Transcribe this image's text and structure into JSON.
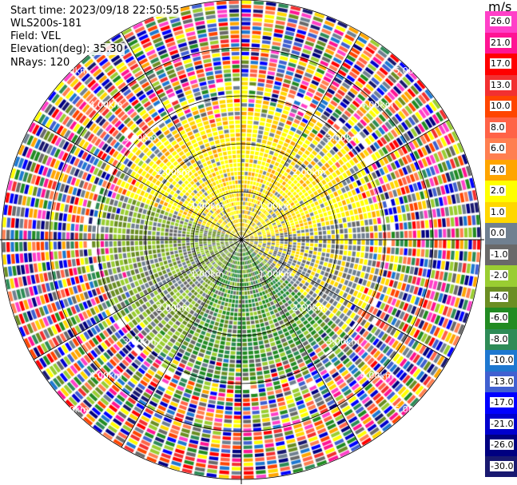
{
  "info": {
    "start_time": "Start time: 2023/09/18 22:50:55",
    "instrument": "WLS200s-181",
    "field": "Field: VEL",
    "elevation": "Elevation(deg): 35.30",
    "nrays": "NRays: 120"
  },
  "chart_data": {
    "type": "heatmap",
    "subtype": "polar PPI",
    "field": "VEL",
    "units": "m/s",
    "n_rays": 120,
    "max_range_km": 5,
    "range_rings_km": [
      1,
      2,
      3,
      4,
      5
    ],
    "range_ring_labels": [
      "1.00km",
      "2.00km",
      "3.00km",
      "4.00km",
      "5.00km"
    ],
    "spoke_interval_deg": 30,
    "colorbar": {
      "unit": "m/s",
      "labels": [
        "26.0",
        "21.0",
        "17.0",
        "13.0",
        "10.0",
        "8.0",
        "6.0",
        "4.0",
        "2.0",
        "1.0",
        "0.0",
        "-1.0",
        "-2.0",
        "-4.0",
        "-6.0",
        "-8.0",
        "-10.0",
        "-13.0",
        "-17.0",
        "-21.0",
        "-26.0",
        "-30.0"
      ],
      "colors": [
        "#ff40c8",
        "#ff1493",
        "#ff0000",
        "#f23030",
        "#ff4500",
        "#ff6347",
        "#ff7f50",
        "#ffa500",
        "#ffff00",
        "#ffd700",
        "#708090",
        "#696969",
        "#9acd32",
        "#6b8e23",
        "#228b22",
        "#2e8b57",
        "#1e78d0",
        "#4060d0",
        "#0000ff",
        "#0000cd",
        "#000080",
        "#191970"
      ]
    },
    "pattern": {
      "near_range_north": "positive (2 to 4 m/s)",
      "near_range_south": "negative (-1 to -6 m/s)",
      "far_range": "noisy (all values)"
    }
  }
}
